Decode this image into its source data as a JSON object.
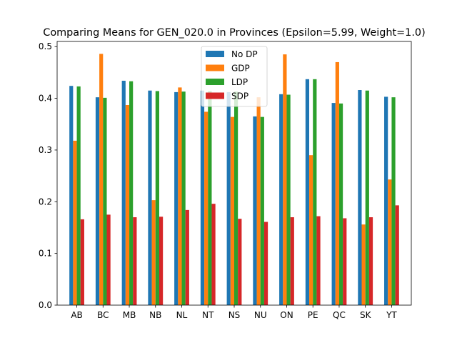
{
  "chart_data": {
    "type": "bar",
    "title": "Comparing Means for GEN_020.0 in Provinces (Epsilon=5.99, Weight=1.0)",
    "xlabel": "",
    "ylabel": "",
    "categories": [
      "AB",
      "BC",
      "MB",
      "NB",
      "NL",
      "NT",
      "NS",
      "NU",
      "ON",
      "PE",
      "QC",
      "SK",
      "YT"
    ],
    "ylim": [
      0,
      0.51
    ],
    "yticks": [
      0.0,
      0.1,
      0.2,
      0.3,
      0.4,
      0.5
    ],
    "ytick_labels": [
      "0.0",
      "0.1",
      "0.2",
      "0.3",
      "0.4",
      "0.5"
    ],
    "grid": false,
    "legend_position": "top-center",
    "series": [
      {
        "name": "No DP",
        "color": "#1f77b4",
        "values": [
          0.424,
          0.402,
          0.434,
          0.415,
          0.412,
          0.415,
          0.412,
          0.365,
          0.408,
          0.437,
          0.391,
          0.416,
          0.403
        ]
      },
      {
        "name": "GDP",
        "color": "#ff7f0e",
        "values": [
          0.318,
          0.486,
          0.387,
          0.203,
          0.421,
          0.374,
          0.364,
          0.402,
          0.485,
          0.29,
          0.47,
          0.156,
          0.243
        ]
      },
      {
        "name": "LDP",
        "color": "#2ca02c",
        "values": [
          0.423,
          0.401,
          0.433,
          0.414,
          0.413,
          0.414,
          0.413,
          0.364,
          0.407,
          0.437,
          0.39,
          0.415,
          0.402
        ]
      },
      {
        "name": "SDP",
        "color": "#d62728",
        "values": [
          0.166,
          0.175,
          0.17,
          0.171,
          0.184,
          0.196,
          0.167,
          0.161,
          0.17,
          0.172,
          0.168,
          0.17,
          0.193
        ]
      }
    ]
  }
}
